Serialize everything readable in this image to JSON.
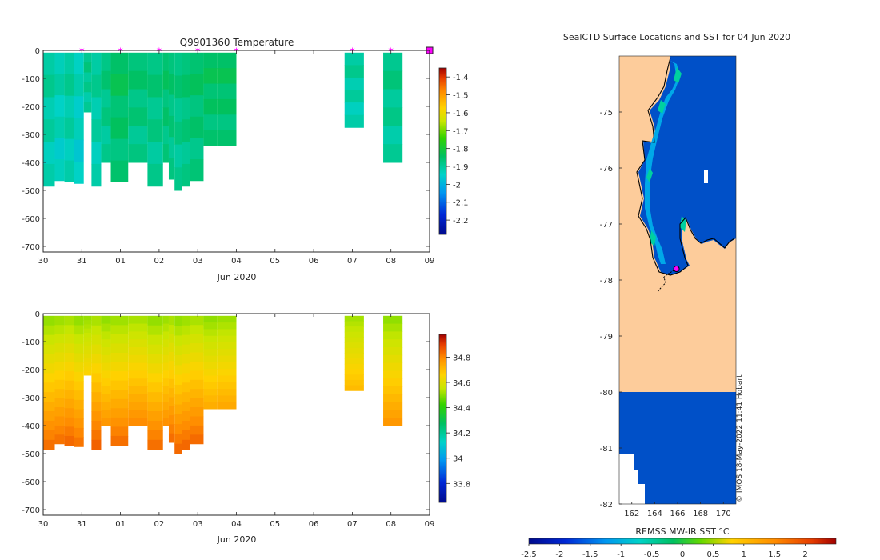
{
  "colors": {
    "temp_profile": "#00b558",
    "temp_profile_light": "#00c488",
    "marker": "#ff00ff",
    "land": "#fdcc9b",
    "sea_cold": "#0050c8",
    "white": "#ffffff"
  },
  "chart_data": [
    {
      "id": "temperature",
      "type": "heatmap",
      "title": "Q9901360  Temperature",
      "xlabel": "Jun 2020",
      "ylabel": "",
      "x_ticks": [
        "30",
        "31",
        "01",
        "02",
        "03",
        "04",
        "05",
        "06",
        "07",
        "08",
        "09"
      ],
      "x_tick_days": [
        0,
        1,
        2,
        3,
        4,
        5,
        6,
        7,
        8,
        9,
        10
      ],
      "y_ticks": [
        0,
        -100,
        -200,
        -300,
        -400,
        -500,
        -600,
        -700
      ],
      "ylim": [
        -720,
        0
      ],
      "colorbar": {
        "ticks": [
          -1.4,
          -1.5,
          -1.6,
          -1.7,
          -1.8,
          -1.9,
          -2,
          -2.1,
          -2.2
        ],
        "range": [
          -2.28,
          -1.35
        ]
      },
      "profile_days": [
        0.0,
        0.3,
        0.55,
        0.8,
        1.05,
        1.25,
        1.5,
        1.75,
        2.2,
        2.7,
        3.1,
        3.25,
        3.4,
        3.6,
        3.8,
        4.15,
        4.5,
        7.8,
        8.8
      ],
      "profile_depths": [
        -485,
        -465,
        -470,
        -475,
        -220,
        -485,
        -400,
        -470,
        -400,
        -485,
        -400,
        -460,
        -500,
        -485,
        -465,
        -340,
        -340,
        -275,
        -400
      ],
      "profile_values": [
        -1.9,
        -1.92,
        -1.9,
        -1.93,
        -1.88,
        -1.9,
        -1.87,
        -1.84,
        -1.86,
        -1.87,
        -1.85,
        -1.86,
        -1.87,
        -1.86,
        -1.85,
        -1.84,
        -1.84,
        -1.9,
        -1.88
      ],
      "marker_days": [
        1,
        2,
        3,
        4,
        5,
        8,
        9,
        10
      ]
    },
    {
      "id": "salinity",
      "type": "heatmap",
      "title": "",
      "xlabel": "Jun 2020",
      "ylabel": "",
      "x_ticks": [
        "30",
        "31",
        "01",
        "02",
        "03",
        "04",
        "05",
        "06",
        "07",
        "08",
        "09"
      ],
      "x_tick_days": [
        0,
        1,
        2,
        3,
        4,
        5,
        6,
        7,
        8,
        9,
        10
      ],
      "y_ticks": [
        0,
        -100,
        -200,
        -300,
        -400,
        -500,
        -600,
        -700
      ],
      "ylim": [
        -720,
        0
      ],
      "colorbar": {
        "ticks": [
          34.8,
          34.6,
          34.4,
          34.2,
          34,
          33.8
        ],
        "range": [
          33.65,
          34.98
        ]
      },
      "surface_value": 34.5,
      "bottom_value": 34.85
    },
    {
      "id": "sst_map",
      "type": "heatmap",
      "title": "SealCTD Surface Locations and SST for 04 Jun 2020",
      "xlabel": "",
      "ylabel": "",
      "x_ticks": [
        "162",
        "164",
        "166",
        "168",
        "170"
      ],
      "x_tick_values": [
        162,
        164,
        166,
        168,
        170
      ],
      "y_ticks": [
        "-75",
        "-76",
        "-77",
        "-78",
        "-79",
        "-80",
        "-81",
        "-82"
      ],
      "y_tick_values": [
        -75,
        -76,
        -77,
        -78,
        -79,
        -80,
        -81,
        -82
      ],
      "xlim": [
        160.9,
        171.1
      ],
      "ylim": [
        -82,
        -74
      ],
      "colorbar": {
        "label": "REMSS MW-IR SST °C",
        "ticks": [
          "-2.5",
          "-2",
          "-1.5",
          "-1",
          "-0.5",
          "0",
          "0.5",
          "1",
          "1.5",
          "2"
        ],
        "tick_values": [
          -2.5,
          -2,
          -1.5,
          -1,
          -0.5,
          0,
          0.5,
          1,
          1.5,
          2
        ],
        "range": [
          -2.5,
          2.5
        ]
      },
      "latest_location": {
        "lon": 165.9,
        "lat": -77.8
      },
      "track": [
        {
          "lon": 165.9,
          "lat": -77.8
        },
        {
          "lon": 165.5,
          "lat": -77.85
        },
        {
          "lon": 165.1,
          "lat": -77.9
        },
        {
          "lon": 164.8,
          "lat": -77.95
        },
        {
          "lon": 164.95,
          "lat": -78.05
        },
        {
          "lon": 164.5,
          "lat": -78.15
        },
        {
          "lon": 164.3,
          "lat": -78.2
        }
      ],
      "credit": "© IMOS 18-May-2022 11:41 Hobart"
    }
  ]
}
